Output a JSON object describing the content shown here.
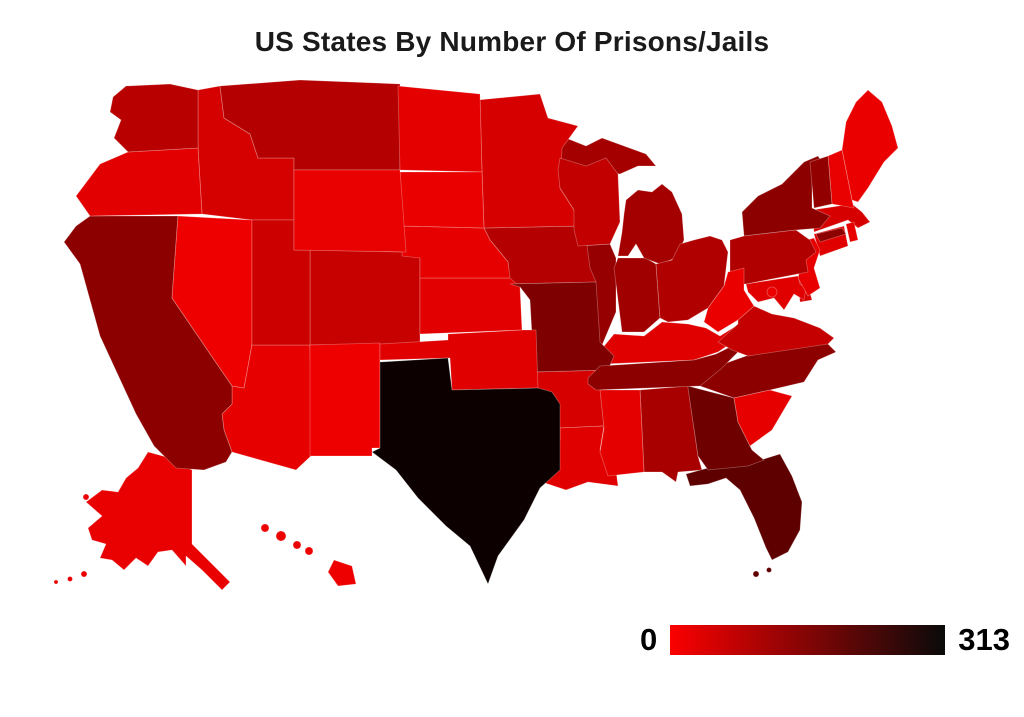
{
  "title": "US States By Number Of Prisons/Jails",
  "legend": {
    "min_label": "0",
    "max_label": "313"
  },
  "colors": {
    "background": "#ffffff",
    "title_text": "#1a1a1a",
    "scale_start": "#fb0000",
    "scale_end": "#0a0a0a"
  },
  "chart_data": {
    "type": "choropleth",
    "title": "US States By Number Of Prisons/Jails",
    "region": "United States (50 states + DC)",
    "metric": "Number of prisons/jails per state",
    "color_scale": {
      "min": 0,
      "max": 313,
      "min_color": "#ff0000",
      "max_color": "#000000",
      "interpolation": "linear red-to-black; darker = more prisons/jails"
    },
    "values_note": "Only the scale endpoints 0 and 313 are labeled in the image; per-state values are estimated from each state's fill shade. Texas is the maximum (313, black).",
    "states": [
      {
        "code": "AL",
        "name": "Alabama",
        "value": 112
      },
      {
        "code": "AK",
        "name": "Alaska",
        "value": 28
      },
      {
        "code": "AZ",
        "name": "Arizona",
        "value": 32
      },
      {
        "code": "AR",
        "name": "Arkansas",
        "value": 52
      },
      {
        "code": "CA",
        "name": "California",
        "value": 148
      },
      {
        "code": "CO",
        "name": "Colorado",
        "value": 72
      },
      {
        "code": "CT",
        "name": "Connecticut",
        "value": 40
      },
      {
        "code": "DE",
        "name": "Delaware",
        "value": 54
      },
      {
        "code": "FL",
        "name": "Florida",
        "value": 206
      },
      {
        "code": "GA",
        "name": "Georgia",
        "value": 186
      },
      {
        "code": "HI",
        "name": "Hawaii",
        "value": 22
      },
      {
        "code": "ID",
        "name": "Idaho",
        "value": 54
      },
      {
        "code": "IL",
        "name": "Illinois",
        "value": 134
      },
      {
        "code": "IN",
        "name": "Indiana",
        "value": 122
      },
      {
        "code": "IA",
        "name": "Iowa",
        "value": 96
      },
      {
        "code": "KS",
        "name": "Kansas",
        "value": 36
      },
      {
        "code": "KY",
        "name": "Kentucky",
        "value": 40
      },
      {
        "code": "LA",
        "name": "Louisiana",
        "value": 40
      },
      {
        "code": "ME",
        "name": "Maine",
        "value": 26
      },
      {
        "code": "MD",
        "name": "Maryland",
        "value": 40
      },
      {
        "code": "MA",
        "name": "Massachusetts",
        "value": 52
      },
      {
        "code": "MI",
        "name": "Michigan",
        "value": 116
      },
      {
        "code": "MN",
        "name": "Minnesota",
        "value": 52
      },
      {
        "code": "MS",
        "name": "Mississippi",
        "value": 34
      },
      {
        "code": "MO",
        "name": "Missouri",
        "value": 166
      },
      {
        "code": "MT",
        "name": "Montana",
        "value": 96
      },
      {
        "code": "NE",
        "name": "Nebraska",
        "value": 32
      },
      {
        "code": "NV",
        "name": "Nevada",
        "value": 22
      },
      {
        "code": "NH",
        "name": "New Hampshire",
        "value": 28
      },
      {
        "code": "NJ",
        "name": "New Jersey",
        "value": 30
      },
      {
        "code": "NM",
        "name": "New Mexico",
        "value": 22
      },
      {
        "code": "NY",
        "name": "New York",
        "value": 148
      },
      {
        "code": "NC",
        "name": "North Carolina",
        "value": 148
      },
      {
        "code": "ND",
        "name": "North Dakota",
        "value": 34
      },
      {
        "code": "OH",
        "name": "Ohio",
        "value": 102
      },
      {
        "code": "OK",
        "name": "Oklahoma",
        "value": 40
      },
      {
        "code": "OR",
        "name": "Oregon",
        "value": 36
      },
      {
        "code": "PA",
        "name": "Pennsylvania",
        "value": 102
      },
      {
        "code": "RI",
        "name": "Rhode Island",
        "value": 30
      },
      {
        "code": "SC",
        "name": "South Carolina",
        "value": 32
      },
      {
        "code": "SD",
        "name": "South Dakota",
        "value": 26
      },
      {
        "code": "TN",
        "name": "Tennessee",
        "value": 148
      },
      {
        "code": "TX",
        "name": "Texas",
        "value": 313
      },
      {
        "code": "UT",
        "name": "Utah",
        "value": 64
      },
      {
        "code": "VT",
        "name": "Vermont",
        "value": 140
      },
      {
        "code": "VA",
        "name": "Virginia",
        "value": 76
      },
      {
        "code": "WA",
        "name": "Washington",
        "value": 90
      },
      {
        "code": "WV",
        "name": "West Virginia",
        "value": 26
      },
      {
        "code": "WI",
        "name": "Wisconsin",
        "value": 78
      },
      {
        "code": "WY",
        "name": "Wyoming",
        "value": 28
      },
      {
        "code": "DC",
        "name": "District of Columbia",
        "value": 24
      }
    ]
  }
}
